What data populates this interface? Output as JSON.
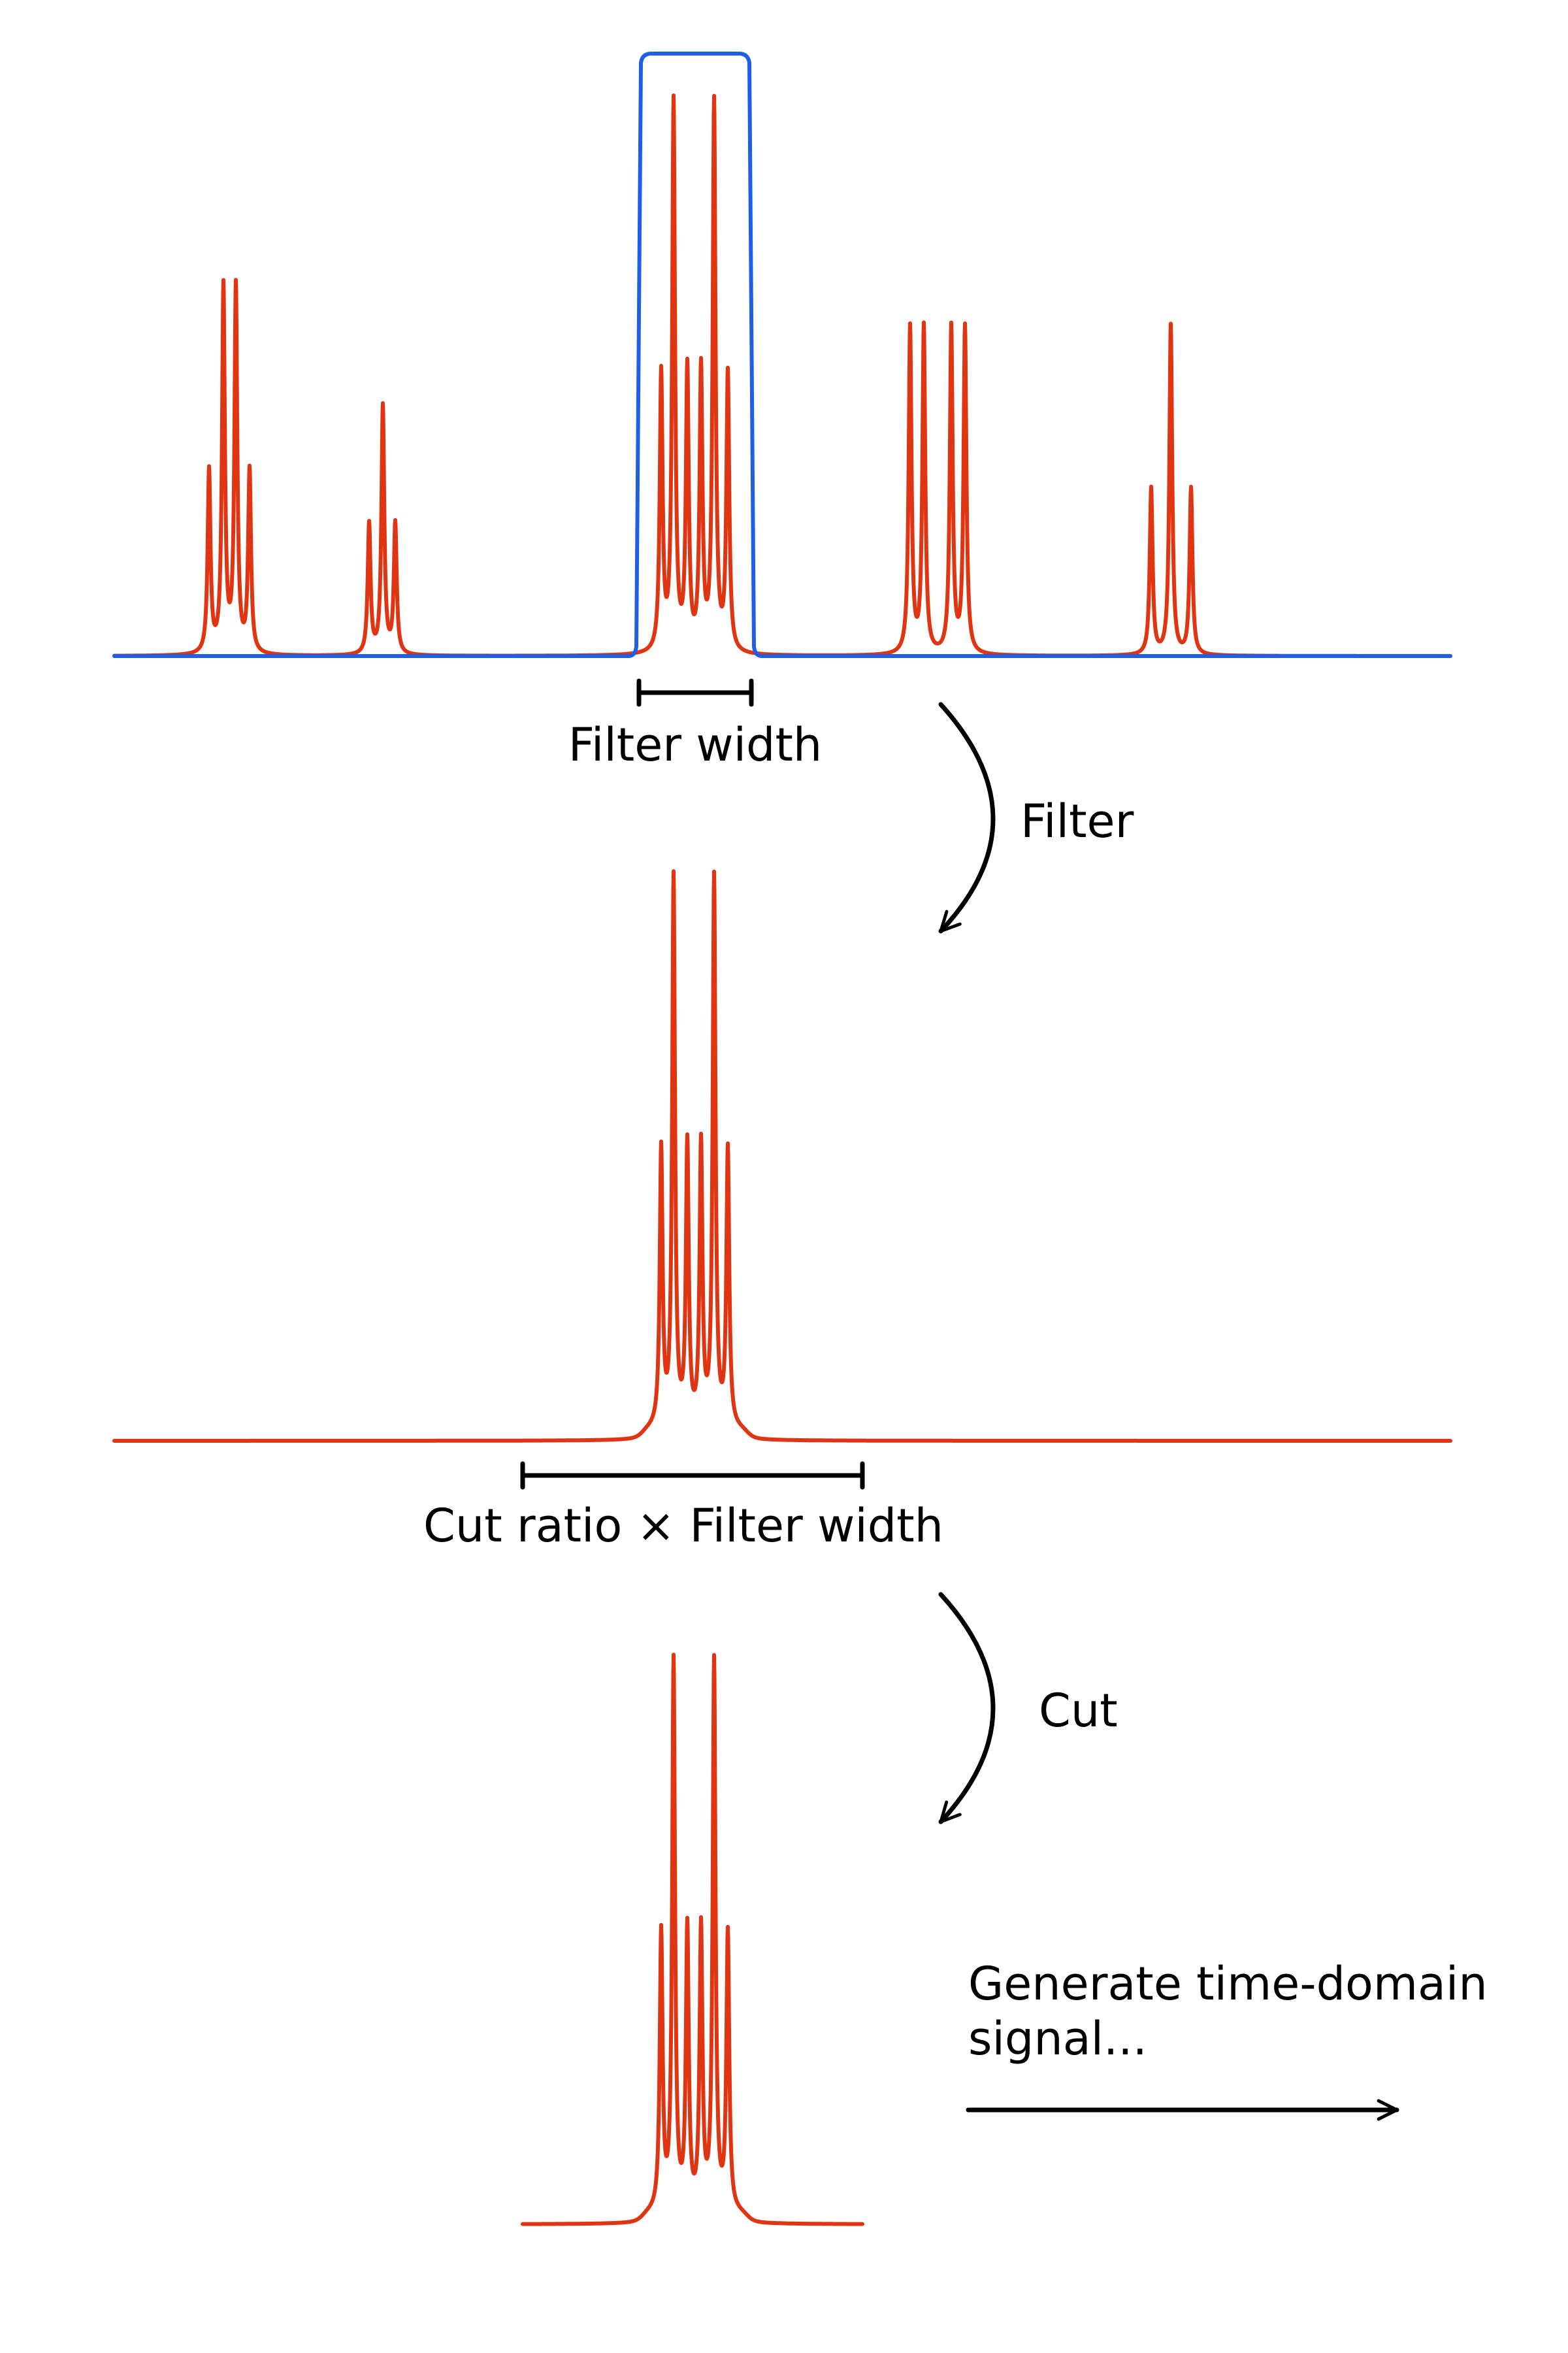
{
  "colors": {
    "spectrum": "#e03512",
    "filter": "#1e5fe6",
    "annotation": "#000000"
  },
  "panels": {
    "full_spectrum": {
      "filter_width_label": "Filter width"
    },
    "filter_step": {
      "label": "Filter"
    },
    "filtered_spectrum": {
      "cut_width_label": "Cut ratio × Filter width"
    },
    "cut_step": {
      "label": "Cut"
    },
    "generate_step": {
      "label_line1": "Generate time-domain",
      "label_line2": "signal..."
    }
  }
}
